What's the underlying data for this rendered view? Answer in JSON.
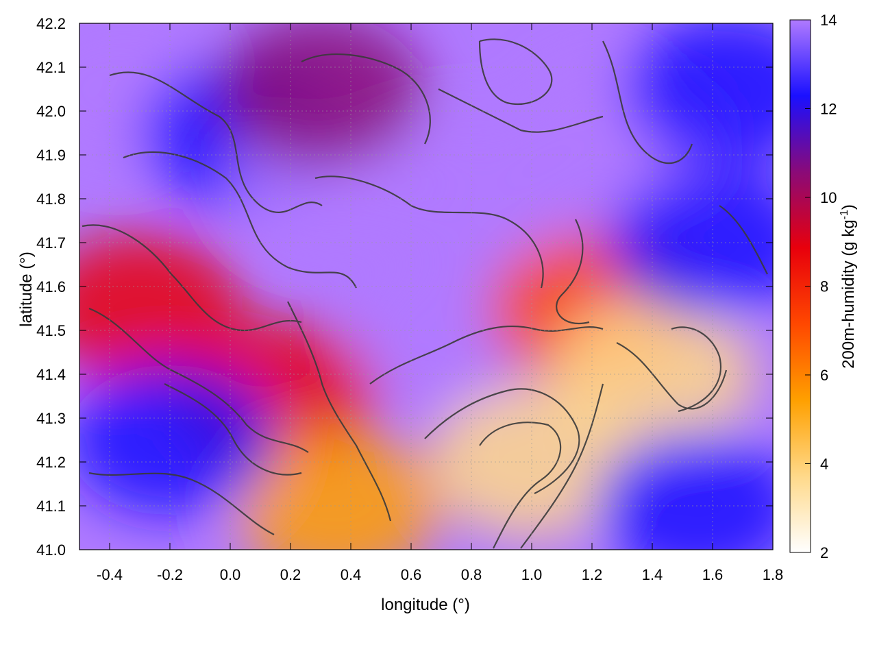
{
  "chart_data": {
    "type": "heatmap",
    "title": "",
    "xlabel": "longitude (°)",
    "ylabel": "latitude (°)",
    "xlim": [
      -0.5,
      1.8
    ],
    "ylim": [
      41.0,
      42.2
    ],
    "x_ticks": [
      -0.4,
      -0.2,
      0.0,
      0.2,
      0.4,
      0.6,
      0.8,
      1.0,
      1.2,
      1.4,
      1.6,
      1.8
    ],
    "x_tick_labels": [
      "-0.4",
      "-0.2",
      "0.0",
      "0.2",
      "0.4",
      "0.6",
      "0.8",
      "1.0",
      "1.2",
      "1.4",
      "1.6",
      "1.8"
    ],
    "y_ticks": [
      41.0,
      41.1,
      41.2,
      41.3,
      41.4,
      41.5,
      41.6,
      41.7,
      41.8,
      41.9,
      42.0,
      42.1,
      42.2
    ],
    "y_tick_labels": [
      "41.0",
      "41.1",
      "41.2",
      "41.3",
      "41.4",
      "41.5",
      "41.6",
      "41.7",
      "41.8",
      "41.9",
      "42.0",
      "42.1",
      "42.2"
    ],
    "grid": true,
    "colorbar": {
      "label": "200m-humidity (g kg-1)",
      "label_main": "200m-humidity (g kg",
      "label_sup": "-1",
      "label_end": ")",
      "range": [
        2,
        14
      ],
      "ticks": [
        2,
        4,
        6,
        8,
        10,
        12,
        14
      ],
      "tick_labels": [
        "2",
        "4",
        "6",
        "8",
        "10",
        "12",
        "14"
      ],
      "palette": [
        "#ffffff",
        "#ffd98a",
        "#ffa000",
        "#ff4800",
        "#e8000c",
        "#8a0a78",
        "#1a10ff",
        "#b07aff"
      ]
    },
    "field_regions": [
      {
        "lon": -0.35,
        "lat": 42.05,
        "value": 13.5
      },
      {
        "lon": 0.05,
        "lat": 41.95,
        "value": 12.5
      },
      {
        "lon": 0.35,
        "lat": 41.85,
        "value": 13.5
      },
      {
        "lon": 0.8,
        "lat": 41.82,
        "value": 13.8
      },
      {
        "lon": 1.3,
        "lat": 41.95,
        "value": 13.8
      },
      {
        "lon": 0.3,
        "lat": 42.05,
        "value": 10.5
      },
      {
        "lon": 1.65,
        "lat": 42.05,
        "value": 11.5
      },
      {
        "lon": -0.3,
        "lat": 41.55,
        "value": 8.0
      },
      {
        "lon": 0.15,
        "lat": 41.35,
        "value": 8.0
      },
      {
        "lon": 0.35,
        "lat": 41.1,
        "value": 6.0
      },
      {
        "lon": 0.75,
        "lat": 41.5,
        "value": 13.5
      },
      {
        "lon": 1.2,
        "lat": 41.55,
        "value": 7.0
      },
      {
        "lon": 1.4,
        "lat": 41.4,
        "value": 3.0
      },
      {
        "lon": 1.0,
        "lat": 41.2,
        "value": 4.5
      },
      {
        "lon": 1.6,
        "lat": 41.7,
        "value": 11.5
      },
      {
        "lon": 1.55,
        "lat": 41.1,
        "value": 13.0
      },
      {
        "lon": -0.2,
        "lat": 41.25,
        "value": 13.0
      }
    ]
  }
}
